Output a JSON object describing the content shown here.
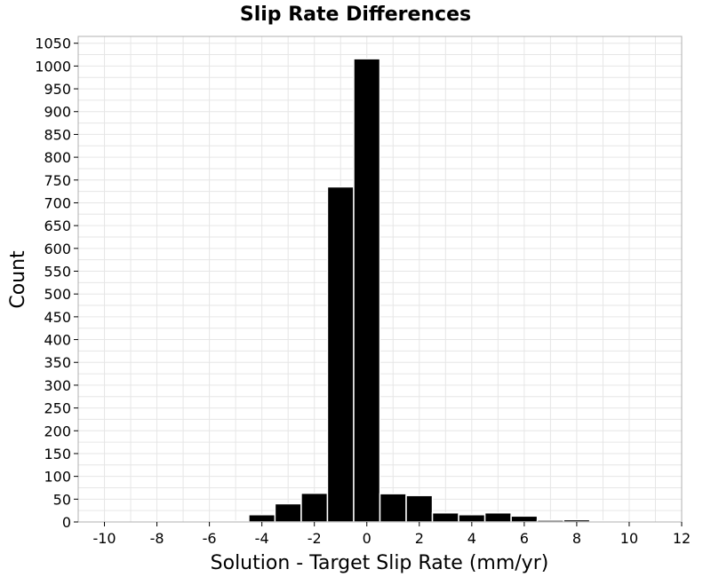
{
  "chart_data": {
    "type": "bar",
    "title": "Slip Rate Differences",
    "xlabel": "Solution - Target Slip Rate (mm/yr)",
    "ylabel": "Count",
    "xlim": [
      -11,
      12
    ],
    "ylim": [
      0,
      1065
    ],
    "x_ticks": [
      -10,
      -8,
      -6,
      -4,
      -2,
      0,
      2,
      4,
      6,
      8,
      10,
      12
    ],
    "y_ticks": [
      0,
      50,
      100,
      150,
      200,
      250,
      300,
      350,
      400,
      450,
      500,
      550,
      600,
      650,
      700,
      750,
      800,
      850,
      900,
      950,
      1000,
      1050
    ],
    "grid": true,
    "bar_color": "#000000",
    "bars": [
      {
        "x": -10,
        "value": 0
      },
      {
        "x": -9,
        "value": 0
      },
      {
        "x": -8,
        "value": 2
      },
      {
        "x": -7,
        "value": 0
      },
      {
        "x": -6,
        "value": 0
      },
      {
        "x": -5,
        "value": 2
      },
      {
        "x": -4,
        "value": 16
      },
      {
        "x": -3,
        "value": 40
      },
      {
        "x": -2,
        "value": 63
      },
      {
        "x": -1,
        "value": 735
      },
      {
        "x": 0,
        "value": 1016
      },
      {
        "x": 1,
        "value": 62
      },
      {
        "x": 2,
        "value": 58
      },
      {
        "x": 3,
        "value": 20
      },
      {
        "x": 4,
        "value": 16
      },
      {
        "x": 5,
        "value": 20
      },
      {
        "x": 6,
        "value": 13
      },
      {
        "x": 7,
        "value": 4
      },
      {
        "x": 8,
        "value": 5
      },
      {
        "x": 9,
        "value": 2
      },
      {
        "x": 10,
        "value": 0
      }
    ]
  }
}
